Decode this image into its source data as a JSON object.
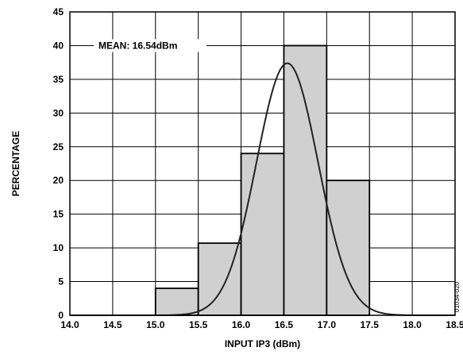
{
  "chart_data": {
    "type": "bar",
    "xlabel": "INPUT IP3 (dBm)",
    "ylabel": "PERCENTAGE",
    "xlim": [
      14.0,
      18.5
    ],
    "ylim": [
      0,
      45
    ],
    "x_ticks": [
      "14.0",
      "14.5",
      "15.0",
      "15.5",
      "16.0",
      "16.5",
      "17.0",
      "17.5",
      "18.0",
      "18.5"
    ],
    "y_ticks": [
      "0",
      "5",
      "10",
      "15",
      "20",
      "25",
      "30",
      "35",
      "40",
      "45"
    ],
    "bins": [
      {
        "from": 15.0,
        "to": 15.5,
        "value": 4
      },
      {
        "from": 15.5,
        "to": 16.0,
        "value": 10.7
      },
      {
        "from": 16.0,
        "to": 16.5,
        "value": 24
      },
      {
        "from": 16.5,
        "to": 17.0,
        "value": 40
      },
      {
        "from": 17.0,
        "to": 17.5,
        "value": 20
      }
    ],
    "fit_curve": {
      "mean": 16.54,
      "sd": 0.36,
      "peak": 37.4
    },
    "annotation": "MEAN: 16.54dBm",
    "figure_id": "01034-020",
    "grid": true,
    "bar_color": "#d0d0d0"
  }
}
